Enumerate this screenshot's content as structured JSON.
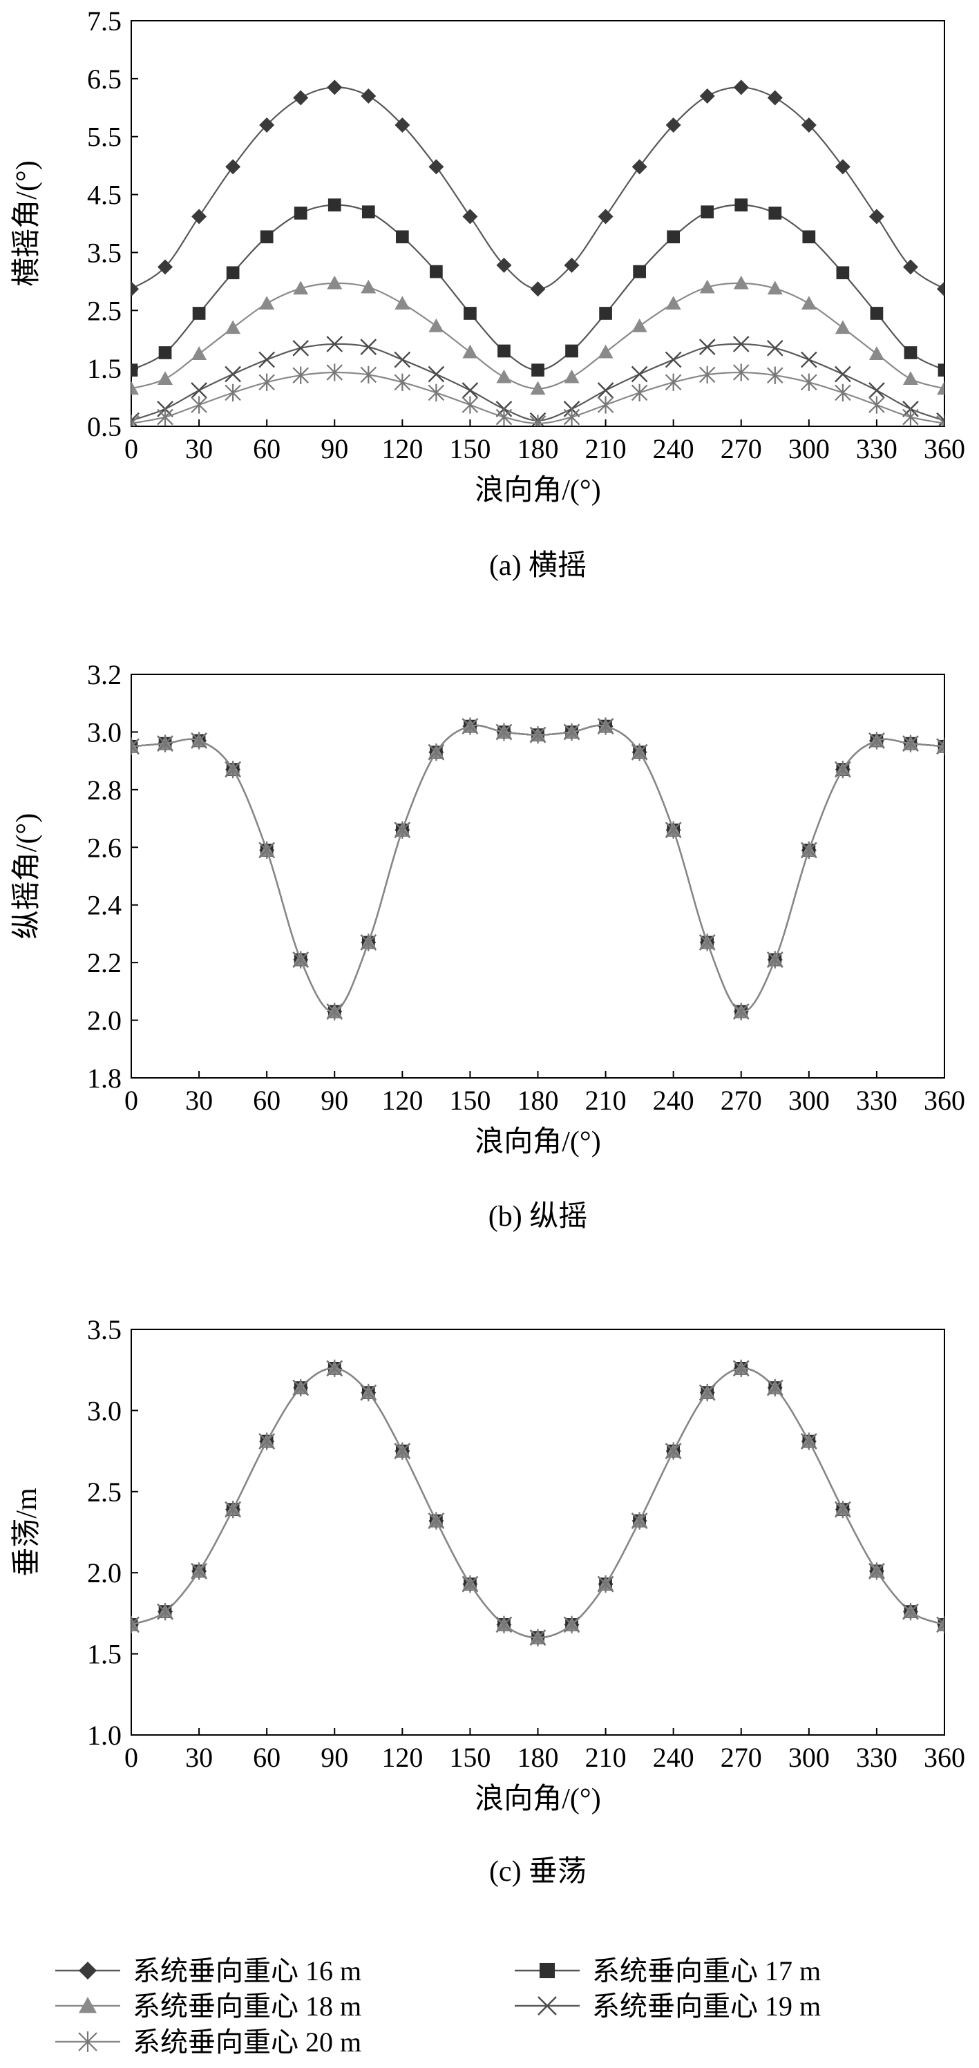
{
  "series_names": [
    "系统垂向重心 16 m",
    "系统垂向重心 17 m",
    "系统垂向重心 18 m",
    "系统垂向重心 19 m",
    "系统垂向重心 20 m"
  ],
  "series_styles": [
    {
      "marker": "diamond",
      "color": "#3a3a3a",
      "line": "#5a5a5a"
    },
    {
      "marker": "square",
      "color": "#2e2e2e",
      "line": "#555555"
    },
    {
      "marker": "triangle",
      "color": "#8a8a8a",
      "line": "#8a8a8a"
    },
    {
      "marker": "x",
      "color": "#4a4a4a",
      "line": "#5a5a5a"
    },
    {
      "marker": "star",
      "color": "#777777",
      "line": "#888888"
    }
  ],
  "chart_data": [
    {
      "type": "line",
      "caption": "(a) 横摇",
      "xlabel": "浪向角/(°)",
      "ylabel": "横摇角/(°)",
      "xlim": [
        0,
        360
      ],
      "ylim": [
        0.5,
        7.5
      ],
      "xticks": [
        0,
        30,
        60,
        90,
        120,
        150,
        180,
        210,
        240,
        270,
        300,
        330,
        360
      ],
      "yticks": [
        0.5,
        1.5,
        2.5,
        3.5,
        4.5,
        5.5,
        6.5,
        7.5
      ],
      "ytick_labels": [
        "0.5",
        "1.5",
        "2.5",
        "3.5",
        "4.5",
        "5.5",
        "6.5",
        "7.5"
      ],
      "x": [
        0,
        15,
        30,
        45,
        60,
        75,
        90,
        105,
        120,
        135,
        150,
        165,
        180,
        195,
        210,
        225,
        240,
        255,
        270,
        285,
        300,
        315,
        330,
        345,
        360
      ],
      "series": [
        {
          "name": "系统垂向重心 16 m",
          "values": [
            2.87,
            3.25,
            4.12,
            4.98,
            5.7,
            6.17,
            6.35,
            6.2,
            5.7,
            4.98,
            4.12,
            3.28,
            2.87,
            3.28,
            4.12,
            4.98,
            5.7,
            6.2,
            6.35,
            6.17,
            5.7,
            4.98,
            4.12,
            3.25,
            2.87
          ]
        },
        {
          "name": "系统垂向重心 17 m",
          "values": [
            1.47,
            1.77,
            2.45,
            3.15,
            3.77,
            4.18,
            4.32,
            4.2,
            3.77,
            3.17,
            2.45,
            1.8,
            1.47,
            1.8,
            2.45,
            3.17,
            3.77,
            4.2,
            4.32,
            4.18,
            3.77,
            3.15,
            2.45,
            1.77,
            1.47
          ]
        },
        {
          "name": "系统垂向重心 18 m",
          "values": [
            1.15,
            1.32,
            1.75,
            2.2,
            2.62,
            2.88,
            2.97,
            2.9,
            2.62,
            2.23,
            1.78,
            1.35,
            1.15,
            1.35,
            1.78,
            2.23,
            2.62,
            2.9,
            2.97,
            2.88,
            2.62,
            2.2,
            1.75,
            1.32,
            1.15
          ]
        },
        {
          "name": "系统垂向重心 19 m",
          "values": [
            0.6,
            0.8,
            1.12,
            1.4,
            1.65,
            1.85,
            1.92,
            1.87,
            1.65,
            1.4,
            1.12,
            0.8,
            0.6,
            0.8,
            1.12,
            1.4,
            1.65,
            1.87,
            1.92,
            1.85,
            1.65,
            1.4,
            1.12,
            0.8,
            0.6
          ]
        },
        {
          "name": "系统垂向重心 20 m",
          "values": [
            0.55,
            0.66,
            0.87,
            1.08,
            1.26,
            1.38,
            1.43,
            1.39,
            1.26,
            1.08,
            0.87,
            0.66,
            0.55,
            0.66,
            0.87,
            1.08,
            1.26,
            1.39,
            1.43,
            1.38,
            1.26,
            1.08,
            0.87,
            0.66,
            0.55
          ]
        }
      ]
    },
    {
      "type": "line",
      "caption": "(b) 纵摇",
      "xlabel": "浪向角/(°)",
      "ylabel": "纵摇角/(°)",
      "xlim": [
        0,
        360
      ],
      "ylim": [
        1.8,
        3.2
      ],
      "xticks": [
        0,
        30,
        60,
        90,
        120,
        150,
        180,
        210,
        240,
        270,
        300,
        330,
        360
      ],
      "yticks": [
        1.8,
        2.0,
        2.2,
        2.4,
        2.6,
        2.8,
        3.0,
        3.2
      ],
      "ytick_labels": [
        "1.8",
        "2.0",
        "2.2",
        "2.4",
        "2.6",
        "2.8",
        "3.0",
        "3.2"
      ],
      "x": [
        0,
        15,
        30,
        45,
        60,
        75,
        90,
        105,
        120,
        135,
        150,
        165,
        180,
        195,
        210,
        225,
        240,
        255,
        270,
        285,
        300,
        315,
        330,
        345,
        360
      ],
      "series": [
        {
          "name": "系统垂向重心 16 m",
          "values": [
            2.95,
            2.96,
            2.97,
            2.87,
            2.59,
            2.21,
            2.03,
            2.27,
            2.66,
            2.93,
            3.02,
            3.0,
            2.99,
            3.0,
            3.02,
            2.93,
            2.66,
            2.27,
            2.03,
            2.21,
            2.59,
            2.87,
            2.97,
            2.96,
            2.95
          ]
        },
        {
          "name": "系统垂向重心 17 m",
          "values": [
            2.95,
            2.96,
            2.97,
            2.87,
            2.59,
            2.21,
            2.03,
            2.27,
            2.66,
            2.93,
            3.02,
            3.0,
            2.99,
            3.0,
            3.02,
            2.93,
            2.66,
            2.27,
            2.03,
            2.21,
            2.59,
            2.87,
            2.97,
            2.96,
            2.95
          ]
        },
        {
          "name": "系统垂向重心 18 m",
          "values": [
            2.95,
            2.96,
            2.97,
            2.87,
            2.59,
            2.21,
            2.03,
            2.27,
            2.66,
            2.93,
            3.02,
            3.0,
            2.99,
            3.0,
            3.02,
            2.93,
            2.66,
            2.27,
            2.03,
            2.21,
            2.59,
            2.87,
            2.97,
            2.96,
            2.95
          ]
        },
        {
          "name": "系统垂向重心 19 m",
          "values": [
            2.95,
            2.96,
            2.97,
            2.87,
            2.59,
            2.21,
            2.03,
            2.27,
            2.66,
            2.93,
            3.02,
            3.0,
            2.99,
            3.0,
            3.02,
            2.93,
            2.66,
            2.27,
            2.03,
            2.21,
            2.59,
            2.87,
            2.97,
            2.96,
            2.95
          ]
        },
        {
          "name": "系统垂向重心 20 m",
          "values": [
            2.95,
            2.96,
            2.97,
            2.87,
            2.59,
            2.21,
            2.03,
            2.27,
            2.66,
            2.93,
            3.02,
            3.0,
            2.99,
            3.0,
            3.02,
            2.93,
            2.66,
            2.27,
            2.03,
            2.21,
            2.59,
            2.87,
            2.97,
            2.96,
            2.95
          ]
        }
      ]
    },
    {
      "type": "line",
      "caption": "(c) 垂荡",
      "xlabel": "浪向角/(°)",
      "ylabel": "垂荡/m",
      "xlim": [
        0,
        360
      ],
      "ylim": [
        1.0,
        3.5
      ],
      "xticks": [
        0,
        30,
        60,
        90,
        120,
        150,
        180,
        210,
        240,
        270,
        300,
        330,
        360
      ],
      "yticks": [
        1.0,
        1.5,
        2.0,
        2.5,
        3.0,
        3.5
      ],
      "ytick_labels": [
        "1.0",
        "1.5",
        "2.0",
        "2.5",
        "3.0",
        "3.5"
      ],
      "x": [
        0,
        15,
        30,
        45,
        60,
        75,
        90,
        105,
        120,
        135,
        150,
        165,
        180,
        195,
        210,
        225,
        240,
        255,
        270,
        285,
        300,
        315,
        330,
        345,
        360
      ],
      "series": [
        {
          "name": "系统垂向重心 16 m",
          "values": [
            1.68,
            1.76,
            2.01,
            2.39,
            2.81,
            3.14,
            3.26,
            3.11,
            2.75,
            2.32,
            1.93,
            1.68,
            1.6,
            1.68,
            1.93,
            2.32,
            2.75,
            3.11,
            3.26,
            3.14,
            2.81,
            2.39,
            2.01,
            1.76,
            1.68
          ]
        },
        {
          "name": "系统垂向重心 17 m",
          "values": [
            1.68,
            1.76,
            2.01,
            2.39,
            2.81,
            3.14,
            3.26,
            3.11,
            2.75,
            2.32,
            1.93,
            1.68,
            1.6,
            1.68,
            1.93,
            2.32,
            2.75,
            3.11,
            3.26,
            3.14,
            2.81,
            2.39,
            2.01,
            1.76,
            1.68
          ]
        },
        {
          "name": "系统垂向重心 18 m",
          "values": [
            1.68,
            1.76,
            2.01,
            2.39,
            2.81,
            3.14,
            3.26,
            3.11,
            2.75,
            2.32,
            1.93,
            1.68,
            1.6,
            1.68,
            1.93,
            2.32,
            2.75,
            3.11,
            3.26,
            3.14,
            2.81,
            2.39,
            2.01,
            1.76,
            1.68
          ]
        },
        {
          "name": "系统垂向重心 19 m",
          "values": [
            1.68,
            1.76,
            2.01,
            2.39,
            2.81,
            3.14,
            3.26,
            3.11,
            2.75,
            2.32,
            1.93,
            1.68,
            1.6,
            1.68,
            1.93,
            2.32,
            2.75,
            3.11,
            3.26,
            3.14,
            2.81,
            2.39,
            2.01,
            1.76,
            1.68
          ]
        },
        {
          "name": "系统垂向重心 20 m",
          "values": [
            1.68,
            1.76,
            2.01,
            2.39,
            2.81,
            3.14,
            3.26,
            3.11,
            2.75,
            2.32,
            1.93,
            1.68,
            1.6,
            1.68,
            1.93,
            2.32,
            2.75,
            3.11,
            3.26,
            3.14,
            2.81,
            2.39,
            2.01,
            1.76,
            1.68
          ]
        }
      ]
    }
  ]
}
